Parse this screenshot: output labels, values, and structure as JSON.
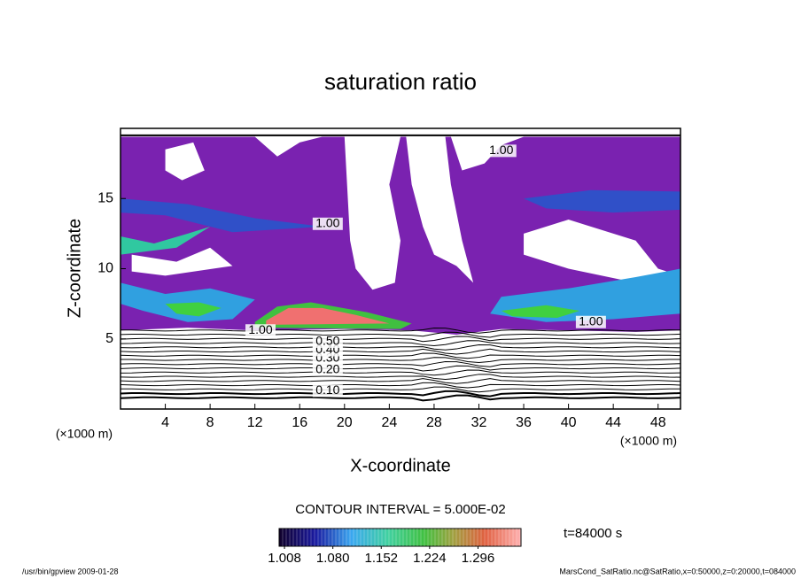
{
  "chart_data": {
    "type": "contour",
    "title": "saturation ratio",
    "x_label": "X-coordinate",
    "y_label": "Z-coordinate",
    "x_unit": "(×1000 m)",
    "y_unit": "(×1000 m)",
    "xlim": [
      0,
      50
    ],
    "xticks": [
      4,
      8,
      12,
      16,
      20,
      24,
      28,
      32,
      36,
      40,
      44,
      48
    ],
    "ylim": [
      0,
      20
    ],
    "yticks": [
      5,
      10,
      15
    ],
    "contour_labels": [
      "0.10",
      "0.20",
      "0.30",
      "0.40",
      "0.50",
      "1.00",
      "1.00",
      "1.00",
      "1.00"
    ],
    "contour_interval": "CONTOUR INTERVAL = 5.000E-02",
    "colorbar": {
      "lim": [
        1.0,
        1.36
      ],
      "ticks": [
        1.008,
        {
          "value": 1.08,
          "label": "1.080"
        },
        1.152,
        1.224,
        1.296
      ]
    },
    "time_label": "t=84000 s",
    "footer_left": "/usr/bin/gpview  2009-01-28",
    "footer_right": "MarsCond_SatRatio.nc@SatRatio,x=0:50000,z=0:20000,t=084000"
  }
}
